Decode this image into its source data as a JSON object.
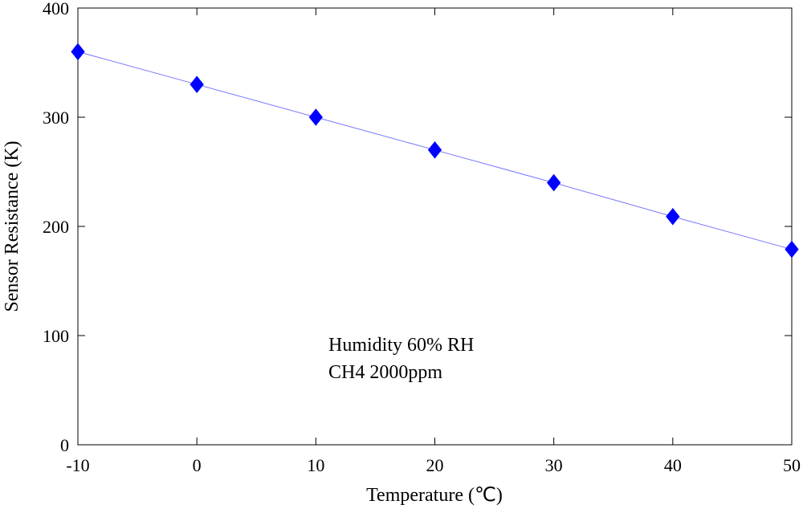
{
  "chart_data": {
    "type": "line",
    "title": "",
    "xlabel": "Temperature (℃)",
    "ylabel": "Sensor Resistance (K)",
    "xlim": [
      -10,
      50
    ],
    "ylim": [
      0,
      400
    ],
    "x_ticks": [
      -10,
      0,
      10,
      20,
      30,
      40,
      50
    ],
    "y_ticks": [
      0,
      100,
      200,
      300,
      400
    ],
    "grid": false,
    "x": [
      -10,
      0,
      10,
      20,
      30,
      40,
      50
    ],
    "series": [
      {
        "values": [
          360,
          330,
          300,
          270,
          240,
          209,
          179
        ],
        "color": "#0000ff",
        "marker": "diamond"
      }
    ],
    "annotations": [
      "Humidity 60% RH",
      "CH4 2000ppm"
    ]
  }
}
